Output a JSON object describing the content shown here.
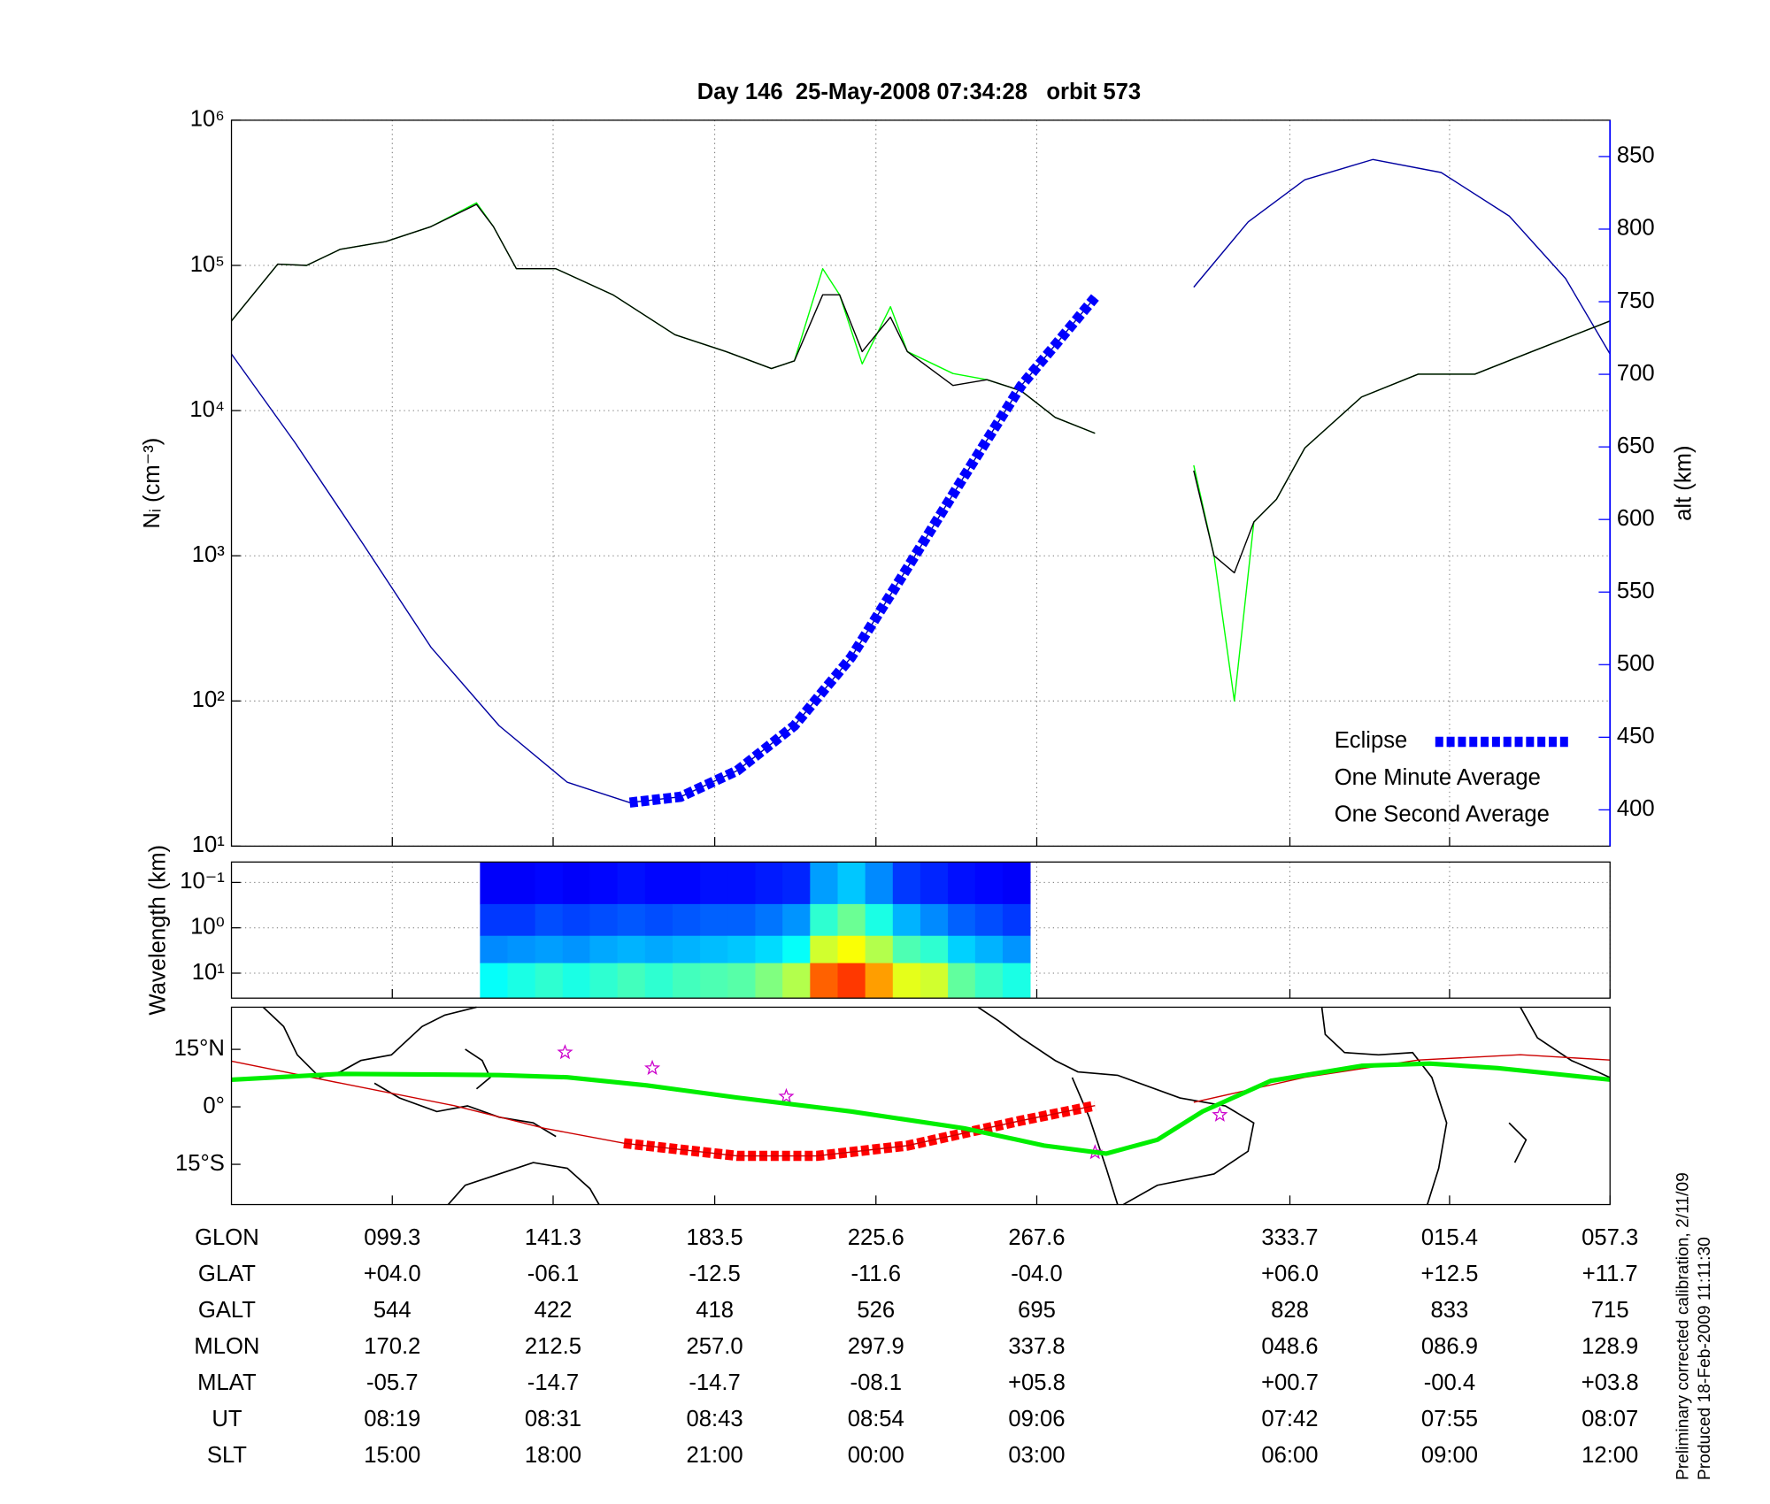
{
  "chart_data": [
    {
      "type": "line",
      "title": "Day 146  25-May-2008 07:34:28   orbit 573",
      "y_label": "Nᵢ (cm⁻³)",
      "y2_label": "alt (km)",
      "log_y": true,
      "grid": true,
      "legend": "lower right",
      "xlim": [
        57.3,
        417.3
      ],
      "xticks": [
        99.3,
        141.3,
        183.5,
        225.6,
        267.6,
        333.7,
        375.4,
        417.3
      ],
      "ylim": [
        10,
        1000000
      ],
      "yticks": [
        {
          "value": 10,
          "label": "10¹"
        },
        {
          "value": 100,
          "label": "10²"
        },
        {
          "value": 1000,
          "label": "10³"
        },
        {
          "value": 10000,
          "label": "10⁴"
        },
        {
          "value": 100000,
          "label": "10⁵"
        },
        {
          "value": 1000000,
          "label": "10⁶"
        }
      ],
      "y2lim": [
        375,
        875
      ],
      "y2ticks": [
        400,
        450,
        500,
        550,
        600,
        650,
        700,
        750,
        800,
        850
      ],
      "y2color": "#0000ff",
      "series": [
        {
          "name": "Eclipse",
          "color": "#0000ff",
          "axis": "y2",
          "style": "dashed-thick",
          "x": [
            161.3,
            174.6,
            189.4,
            204.3,
            219.1,
            233.9,
            248.7,
            263.5,
            282.8
          ],
          "values": [
            405,
            409,
            427,
            458,
            505,
            567,
            630,
            692,
            753
          ]
        },
        {
          "name": "One Minute Average",
          "color": "#000000",
          "x": [
            57.3,
            69.4,
            76.9,
            85.7,
            97.6,
            109.4,
            121.3,
            125.7,
            131.7,
            142.0,
            156.9,
            173.1,
            186.5,
            198.3,
            204.3,
            211.7,
            216.1,
            222.0,
            229.4,
            233.8,
            245.7,
            254.6,
            263.5,
            272.4,
            282.8,
            295.0,
            308.6,
            313.9,
            319.2,
            324.3,
            330.2,
            337.6,
            352.4,
            367.2,
            382.0,
            396.9,
            417.3
          ],
          "values": [
            41400,
            102000,
            100000,
            129000,
            146000,
            185000,
            263000,
            185000,
            95000,
            95000,
            62700,
            33300,
            25500,
            19500,
            22000,
            62700,
            62700,
            25500,
            44000,
            25500,
            14900,
            16300,
            13700,
            8980,
            6980,
            null,
            3860,
            1000,
            764,
            1710,
            2450,
            5520,
            12400,
            17800,
            17800,
            25500,
            41400
          ]
        },
        {
          "name": "One Second Average",
          "color": "#00ff00",
          "x": [
            57.3,
            69.4,
            76.9,
            85.7,
            97.6,
            109.4,
            121.3,
            125.7,
            131.7,
            142.0,
            156.9,
            173.1,
            186.5,
            198.3,
            204.3,
            211.7,
            216.1,
            222.0,
            229.4,
            233.8,
            245.7,
            254.6,
            263.5,
            272.4,
            282.8,
            295.0,
            308.6,
            313.9,
            319.2,
            324.3,
            330.2,
            337.6,
            352.4,
            367.2,
            382.0,
            396.9,
            417.3
          ],
          "values": [
            41400,
            102000,
            100000,
            129000,
            146000,
            185000,
            270000,
            185000,
            95000,
            95000,
            62700,
            33300,
            25500,
            19500,
            22000,
            95000,
            62700,
            21000,
            52000,
            25500,
            18000,
            16300,
            13700,
            8980,
            6980,
            null,
            4200,
            1000,
            100,
            1710,
            2450,
            5520,
            12400,
            17800,
            17800,
            25500,
            41400
          ]
        },
        {
          "color": "#0000a0",
          "axis": "y2",
          "x": [
            57.3,
            73.9,
            91.7,
            109.4,
            127.2,
            145.0,
            161.3,
            174.6,
            189.4,
            204.3,
            219.1,
            233.9,
            248.7,
            263.5,
            282.8,
            295.0,
            308.6,
            322.8,
            337.6,
            355.4,
            373.2,
            391.0,
            405.7,
            417.3
          ],
          "values": [
            714,
            653,
            583,
            512,
            458,
            419,
            405,
            409,
            427,
            458,
            505,
            567,
            630,
            692,
            753,
            null,
            760,
            805,
            834,
            848,
            839,
            809,
            766,
            714
          ]
        }
      ]
    },
    {
      "type": "heatmap",
      "y_label": "Wavelength (km)",
      "log_y": true,
      "grid": true,
      "xlim": [
        57.3,
        417.3
      ],
      "xticks": [
        99.3,
        141.3,
        183.5,
        225.6,
        267.6,
        333.7,
        375.4,
        417.3
      ],
      "ylim": [
        35.5,
        0.0355
      ],
      "yticks": [
        {
          "value": 0.1,
          "label": "10⁻¹"
        },
        {
          "value": 1,
          "label": "10⁰"
        },
        {
          "value": 10,
          "label": "10¹"
        }
      ],
      "x": [
        122.2,
        129.4,
        136.6,
        143.8,
        150.9,
        158.1,
        165.3,
        172.5,
        179.7,
        186.9,
        194.1,
        201.2,
        208.4,
        215.6,
        222.8,
        230.0,
        237.2,
        244.4,
        251.5,
        258.7,
        265.9
      ],
      "y": [
        0.0355,
        0.3,
        1.5,
        6,
        35.5
      ],
      "zlim": [
        0,
        1
      ],
      "z": [
        [
          0.12,
          0.12,
          0.13,
          0.12,
          0.13,
          0.14,
          0.13,
          0.13,
          0.14,
          0.14,
          0.15,
          0.16,
          0.28,
          0.32,
          0.26,
          0.18,
          0.16,
          0.14,
          0.13,
          0.12
        ],
        [
          0.18,
          0.18,
          0.2,
          0.19,
          0.2,
          0.21,
          0.2,
          0.21,
          0.22,
          0.22,
          0.24,
          0.27,
          0.42,
          0.48,
          0.4,
          0.3,
          0.26,
          0.22,
          0.2,
          0.18
        ],
        [
          0.26,
          0.27,
          0.28,
          0.27,
          0.29,
          0.3,
          0.29,
          0.3,
          0.31,
          0.32,
          0.34,
          0.38,
          0.58,
          0.62,
          0.55,
          0.45,
          0.42,
          0.33,
          0.3,
          0.27
        ],
        [
          0.38,
          0.4,
          0.42,
          0.4,
          0.42,
          0.44,
          0.42,
          0.44,
          0.45,
          0.46,
          0.5,
          0.55,
          0.78,
          0.82,
          0.72,
          0.6,
          0.58,
          0.47,
          0.43,
          0.4
        ]
      ]
    },
    {
      "type": "line",
      "xlim": [
        57.3,
        417.3
      ],
      "xticks": [
        99.3,
        141.3,
        183.5,
        225.6,
        267.6,
        333.7,
        375.4,
        417.3
      ],
      "ylim": [
        -25.5,
        26
      ],
      "yticks": [
        {
          "value": 15,
          "label": "15°N"
        },
        {
          "value": 0,
          "label": "0°"
        },
        {
          "value": -15,
          "label": "15°S"
        }
      ],
      "series": [
        {
          "color": "#00ee00",
          "style": "thick",
          "x": [
            57.3,
            85.7,
            127.2,
            145.0,
            165.7,
            189.4,
            219.1,
            248.7,
            269.5,
            285.7,
            299.1,
            310.9,
            328.7,
            352.4,
            370.2,
            388.0,
            405.7,
            417.3
          ],
          "values": [
            7.1,
            8.6,
            8.3,
            7.7,
            5.6,
            2.4,
            -1.2,
            -5.6,
            -10.1,
            -12.2,
            -8.6,
            -1.2,
            6.8,
            10.7,
            11.3,
            10.1,
            8.3,
            7.1
          ]
        },
        {
          "color": "#cc0000",
          "x": [
            57.3,
            85.7,
            115.4,
            139.1,
            159.8,
            189.4,
            210.2,
            233.9,
            263.5,
            282.8,
            295.0,
            308.6,
            337.6,
            367.2,
            393.9,
            417.3
          ],
          "values": [
            11.9,
            6.2,
            0.3,
            -5.6,
            -9.5,
            -12.8,
            -12.8,
            -10.1,
            -3.6,
            0.3,
            null,
            1.2,
            7.7,
            12.2,
            13.6,
            12.2
          ]
        },
        {
          "color": "#ff0000",
          "style": "dashed-thick",
          "x": [
            159.8,
            189.4,
            210.2,
            233.9,
            263.5,
            282.8
          ],
          "values": [
            -9.5,
            -12.8,
            -12.8,
            -10.1,
            -3.6,
            0.3
          ]
        },
        {
          "color": "#cc00cc",
          "style": "star",
          "x": [
            144.4,
            167.2,
            202.2,
            282.8,
            315.4
          ],
          "values": [
            14.2,
            10.1,
            2.7,
            -11.9,
            -2.1
          ]
        }
      ]
    }
  ],
  "table": {
    "rows": [
      {
        "label": "GLON",
        "values": [
          "099.3",
          "141.3",
          "183.5",
          "225.6",
          "267.6",
          "333.7",
          "015.4",
          "057.3"
        ]
      },
      {
        "label": "GLAT",
        "values": [
          "+04.0",
          "-06.1",
          "-12.5",
          "-11.6",
          "-04.0",
          "+06.0",
          "+12.5",
          "+11.7"
        ]
      },
      {
        "label": "GALT",
        "values": [
          "544",
          "422",
          "418",
          "526",
          "695",
          "828",
          "833",
          "715"
        ]
      },
      {
        "label": "MLON",
        "values": [
          "170.2",
          "212.5",
          "257.0",
          "297.9",
          "337.8",
          "048.6",
          "086.9",
          "128.9"
        ]
      },
      {
        "label": "MLAT",
        "values": [
          "-05.7",
          "-14.7",
          "-14.7",
          "-08.1",
          "+05.8",
          "+00.7",
          "-00.4",
          "+03.8"
        ]
      },
      {
        "label": "UT",
        "values": [
          "08:19",
          "08:31",
          "08:43",
          "08:54",
          "09:06",
          "07:42",
          "07:55",
          "08:07"
        ]
      },
      {
        "label": "SLT",
        "values": [
          "15:00",
          "18:00",
          "21:00",
          "00:00",
          "03:00",
          "06:00",
          "09:00",
          "12:00"
        ]
      }
    ]
  },
  "footer": [
    "Preliminary corrected calibration, 2/11/09",
    "Produced 18-Feb-2009 11:11:30"
  ]
}
